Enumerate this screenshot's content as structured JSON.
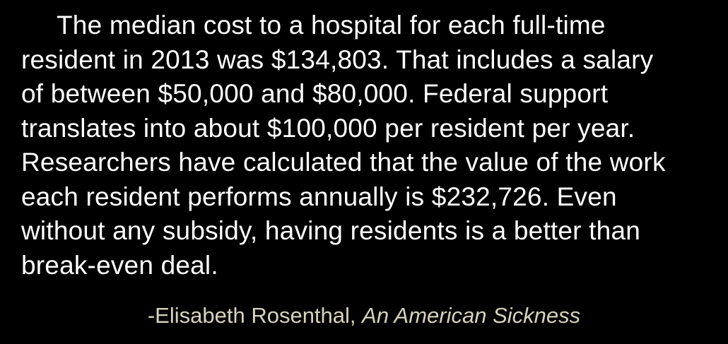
{
  "quote": {
    "lines": [
      "The median cost to a hospital for each full-time",
      "resident in 2013 was $134,803. That includes a salary",
      "of between $50,000 and $80,000. Federal support",
      "translates into about $100,000 per resident per year.",
      "Researchers have calculated that the value of the work",
      "each resident performs annually is $232,726. Even",
      "without any subsidy, having residents is a better than",
      "break-even deal."
    ]
  },
  "attribution": {
    "author": "-Elisabeth Rosenthal,",
    "title": "An American Sickness"
  },
  "colors": {
    "background": "#000000",
    "quote_text": "#ffffff",
    "attribution_text": "#d6d3bd"
  }
}
